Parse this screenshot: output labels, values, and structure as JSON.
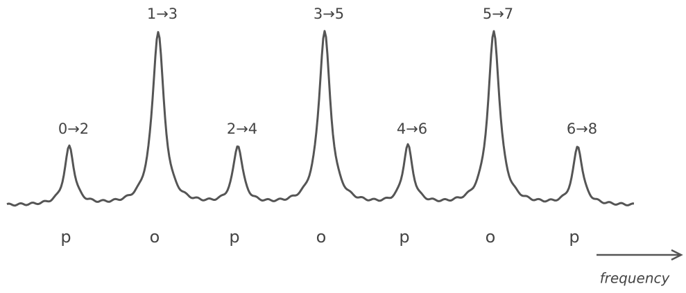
{
  "peaks": [
    {
      "transition": "0→2",
      "label": "p"
    },
    {
      "transition": "1→3",
      "label": "o"
    },
    {
      "transition": "2→4",
      "label": "p"
    },
    {
      "transition": "3→5",
      "label": "o"
    },
    {
      "transition": "4→6",
      "label": "p"
    },
    {
      "transition": "5→7",
      "label": "o"
    },
    {
      "transition": "6→8",
      "label": "p"
    }
  ],
  "axis_label": "frequency"
}
